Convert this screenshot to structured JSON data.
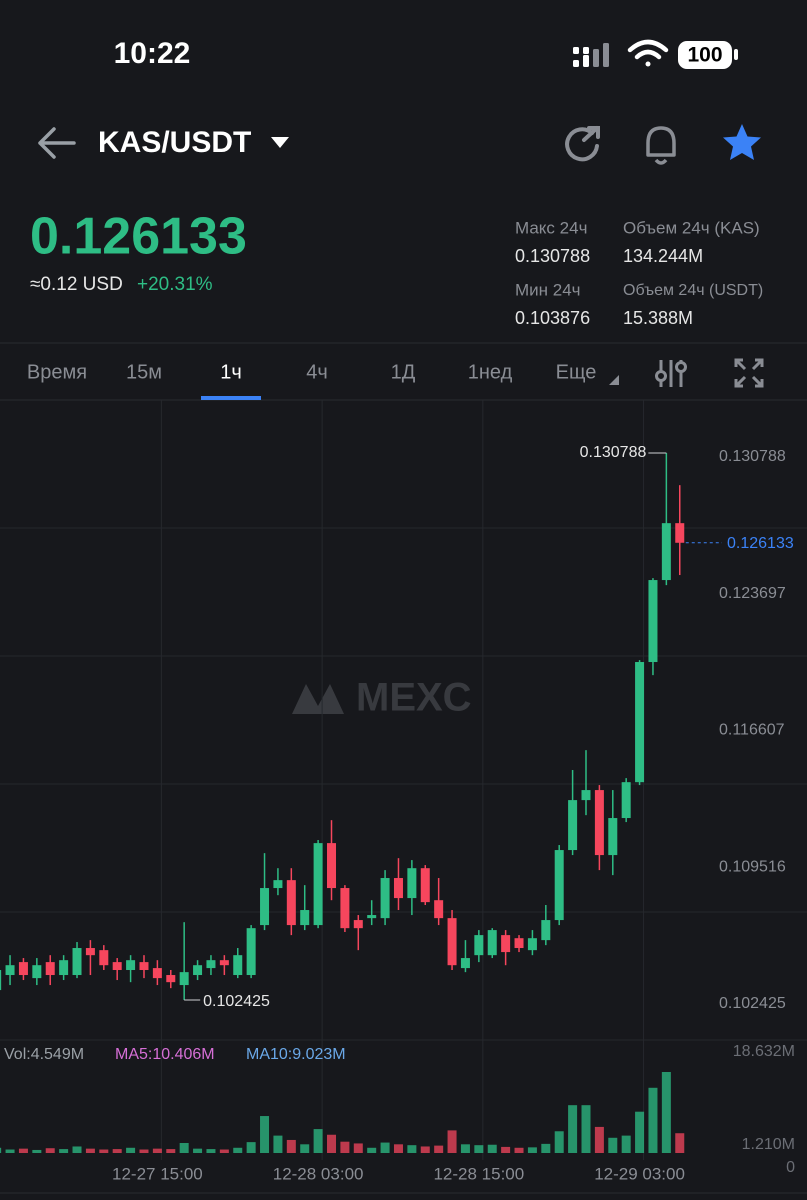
{
  "status_bar": {
    "time": "10:22",
    "battery": "100"
  },
  "header": {
    "pair": "KAS/USDT"
  },
  "ticker": {
    "price": "0.126133",
    "usd": "≈0.12 USD",
    "change": "+20.31%",
    "stats": [
      {
        "label": "Макс 24ч",
        "value": "0.130788"
      },
      {
        "label": "Объем 24ч (KAS)",
        "value": "134.244M"
      },
      {
        "label": "Мин 24ч",
        "value": "0.103876"
      },
      {
        "label": "Объем 24ч  (USDT)",
        "value": "15.388M"
      }
    ]
  },
  "tabs": [
    "Время",
    "15м",
    "1ч",
    "4ч",
    "1Д",
    "1нед",
    "Еще"
  ],
  "chart_data": {
    "type": "candlestick",
    "watermark": "MEXC",
    "up_color": "#2ebd85",
    "down_color": "#f6465d",
    "open": [
      0.10294,
      0.10372,
      0.10439,
      0.10356,
      0.10439,
      0.10372,
      0.10372,
      0.10512,
      0.10501,
      0.10439,
      0.10398,
      0.10439,
      0.10408,
      0.10372,
      0.1032,
      0.10372,
      0.10408,
      0.10449,
      0.10372,
      0.10372,
      0.10631,
      0.10823,
      0.10864,
      0.10631,
      0.10631,
      0.11056,
      0.10823,
      0.10657,
      0.10667,
      0.10667,
      0.10875,
      0.10771,
      0.10926,
      0.1076,
      0.10667,
      0.10408,
      0.10475,
      0.10475,
      0.10579,
      0.10563,
      0.10501,
      0.10553,
      0.10657,
      0.1102,
      0.11279,
      0.11331,
      0.10994,
      0.11186,
      0.11372,
      0.11995,
      0.1242,
      0.12715
    ],
    "high": [
      0.10449,
      0.10475,
      0.1046,
      0.1046,
      0.10475,
      0.10475,
      0.10543,
      0.10553,
      0.10527,
      0.1046,
      0.10475,
      0.10475,
      0.10449,
      0.10398,
      0.10646,
      0.10449,
      0.10475,
      0.10475,
      0.10512,
      0.10631,
      0.11004,
      0.10926,
      0.10926,
      0.10838,
      0.11072,
      0.11175,
      0.10838,
      0.10683,
      0.1076,
      0.10916,
      0.10978,
      0.10968,
      0.10942,
      0.10875,
      0.10709,
      0.10553,
      0.10605,
      0.10615,
      0.10605,
      0.10579,
      0.10605,
      0.10735,
      0.11046,
      0.11435,
      0.11538,
      0.11357,
      0.11331,
      0.11393,
      0.12005,
      0.1243,
      0.130788,
      0.12912
    ],
    "low": [
      0.10252,
      0.1032,
      0.10346,
      0.1032,
      0.1032,
      0.10346,
      0.10356,
      0.10372,
      0.10398,
      0.10346,
      0.10335,
      0.10356,
      0.1032,
      0.10304,
      0.102425,
      0.10346,
      0.10372,
      0.10372,
      0.10356,
      0.10356,
      0.10605,
      0.10786,
      0.10579,
      0.10605,
      0.10615,
      0.1076,
      0.10595,
      0.10501,
      0.10631,
      0.10631,
      0.10709,
      0.10683,
      0.10735,
      0.10631,
      0.10398,
      0.10387,
      0.10439,
      0.1046,
      0.10423,
      0.10491,
      0.10475,
      0.10527,
      0.10631,
      0.10994,
      0.11201,
      0.10916,
      0.1089,
      0.11165,
      0.11357,
      0.11927,
      0.12394,
      0.12446
    ],
    "close": [
      0.10398,
      0.10423,
      0.10372,
      0.10423,
      0.10372,
      0.10449,
      0.10512,
      0.10475,
      0.10423,
      0.10398,
      0.10449,
      0.10398,
      0.10356,
      0.10335,
      0.10387,
      0.10423,
      0.10449,
      0.10423,
      0.10475,
      0.10615,
      0.10823,
      0.10864,
      0.10631,
      0.10709,
      0.11056,
      0.10823,
      0.10615,
      0.10615,
      0.10683,
      0.10875,
      0.10771,
      0.10926,
      0.1075,
      0.10667,
      0.10423,
      0.1046,
      0.10579,
      0.10605,
      0.10491,
      0.10512,
      0.10563,
      0.10657,
      0.1102,
      0.11279,
      0.11331,
      0.10994,
      0.11186,
      0.11372,
      0.11995,
      0.1242,
      0.12715,
      0.126133
    ],
    "xlim": [
      0.25,
      60.5
    ],
    "xticks": [
      {
        "value": 12,
        "label": "12-27 15:00"
      },
      {
        "value": 24,
        "label": "12-28 03:00"
      },
      {
        "value": 36,
        "label": "12-28 15:00"
      },
      {
        "value": 48,
        "label": "12-29 03:00"
      }
    ],
    "ylim": [
      0.100351,
      0.133536
    ],
    "yticks": [
      0.130788,
      0.123697,
      0.116607,
      0.109516,
      0.102425
    ],
    "volume": {
      "labels": [
        "Vol:4.549M",
        "MA5:10.406M",
        "MA10:9.023M"
      ],
      "values": [
        1.2,
        0.8,
        1.0,
        0.7,
        1.1,
        0.9,
        1.5,
        1.0,
        0.8,
        0.9,
        1.2,
        0.8,
        1.0,
        0.9,
        2.3,
        1.0,
        0.9,
        0.8,
        1.2,
        2.5,
        8.5,
        4.0,
        3.0,
        2.0,
        5.5,
        4.2,
        2.6,
        2.2,
        1.2,
        2.4,
        2.0,
        1.8,
        1.5,
        1.7,
        5.2,
        2.0,
        1.8,
        1.9,
        1.4,
        1.2,
        1.3,
        2.1,
        5.0,
        11.0,
        11.0,
        6.0,
        3.5,
        4.0,
        9.5,
        15.0,
        18.632,
        4.549
      ],
      "ylim": [
        0,
        18.632
      ],
      "yticks": [
        {
          "value": 18.632,
          "label": "18.632M"
        },
        {
          "value": 1.21,
          "label": "1.210M"
        },
        0
      ]
    }
  }
}
